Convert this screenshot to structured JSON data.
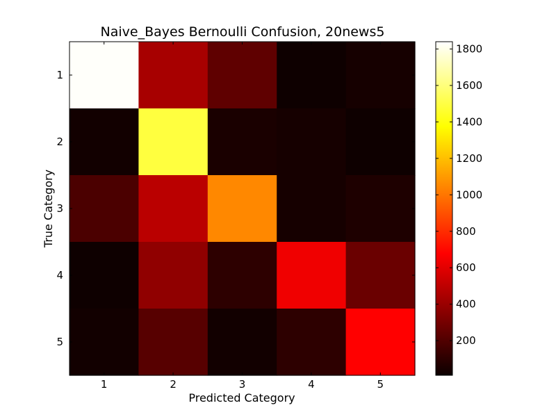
{
  "chart_data": {
    "type": "heatmap",
    "title": "Naive_Bayes Bernoulli Confusion, 20news5",
    "xlabel": "Predicted Category",
    "ylabel": "True Category",
    "x_categories": [
      "1",
      "2",
      "3",
      "4",
      "5"
    ],
    "y_categories": [
      "1",
      "2",
      "3",
      "4",
      "5"
    ],
    "values": [
      [
        1830,
        420,
        230,
        20,
        40
      ],
      [
        30,
        1490,
        50,
        40,
        20
      ],
      [
        180,
        470,
        1050,
        40,
        60
      ],
      [
        20,
        360,
        100,
        610,
        260
      ],
      [
        30,
        210,
        30,
        100,
        650
      ]
    ],
    "colorbar": {
      "colormap": "hot",
      "vmin": 10,
      "vmax": 1840,
      "ticks": [
        200,
        400,
        600,
        800,
        1000,
        1200,
        1400,
        1600,
        1800
      ]
    }
  }
}
